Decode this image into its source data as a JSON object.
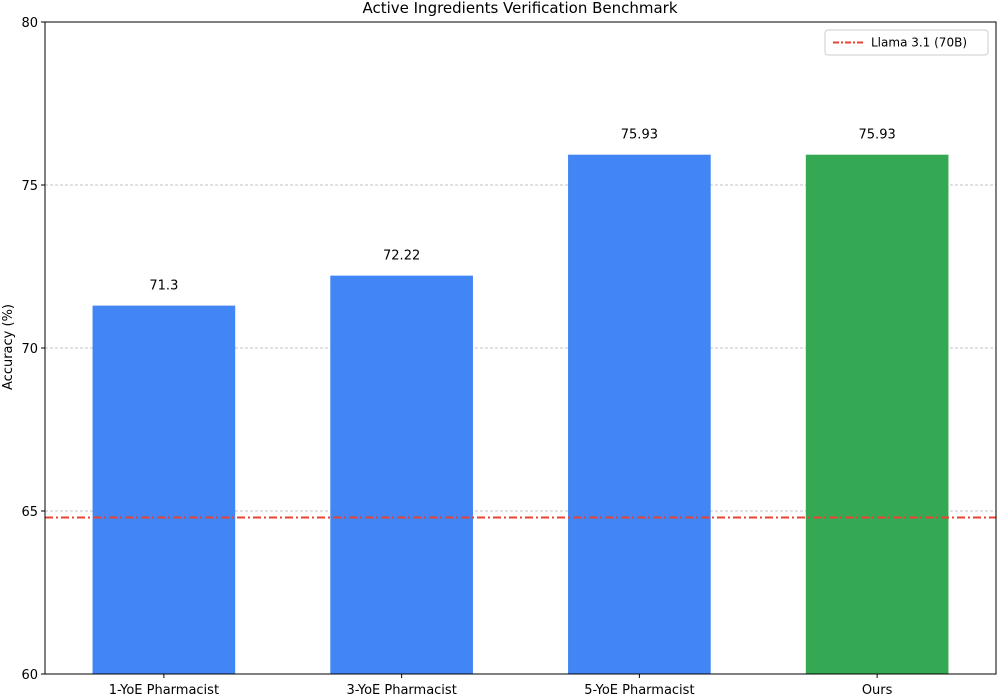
{
  "chart_data": {
    "type": "bar",
    "title": "Active Ingredients Verification Benchmark",
    "xlabel": "",
    "ylabel": "Accuracy (%)",
    "ylim": [
      60,
      80
    ],
    "yticks": [
      60,
      65,
      70,
      75,
      80
    ],
    "categories": [
      "1-YoE Pharmacist",
      "3-YoE Pharmacist",
      "5-YoE Pharmacist",
      "Ours"
    ],
    "values": [
      71.3,
      72.22,
      75.93,
      75.93
    ],
    "data_labels": [
      "71.3",
      "72.22",
      "75.93",
      "75.93"
    ],
    "bar_colors": [
      "#4285f4",
      "#4285f4",
      "#4285f4",
      "#34a853"
    ],
    "grid": "y-dashed",
    "reference_line": {
      "name": "Llama 3.1 (70B)",
      "value": 64.8,
      "color": "#ea4335",
      "style": "dash-dot"
    },
    "legend": {
      "placement": "top-right",
      "entries": [
        "Llama 3.1 (70B)"
      ]
    }
  }
}
